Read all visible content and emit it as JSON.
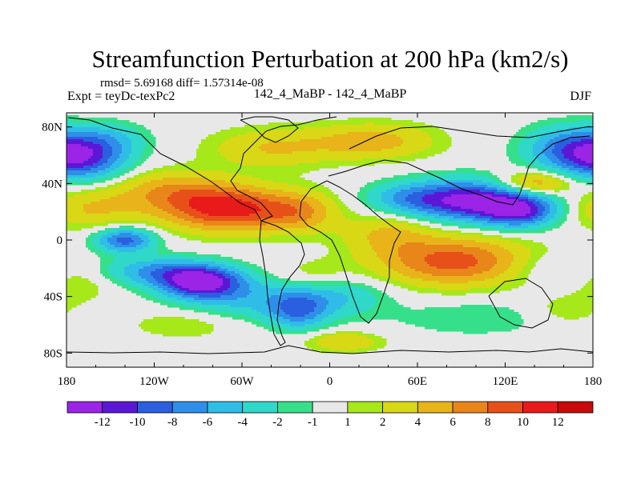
{
  "chart_data": {
    "type": "heatmap",
    "title": "Streamfunction Perturbation at 200 hPa (km2/s)",
    "stats_text": "rmsd= 5.69168 diff= 1.57314e-08",
    "left_label": "Expt = teyDc-texPc2",
    "center_label": "142_4_MaBP - 142_4_MaBP",
    "right_label": "DJF",
    "x_ticks": [
      {
        "value": -180,
        "label": "180"
      },
      {
        "value": -120,
        "label": "120W"
      },
      {
        "value": -60,
        "label": "60W"
      },
      {
        "value": 0,
        "label": "0"
      },
      {
        "value": 60,
        "label": "60E"
      },
      {
        "value": 120,
        "label": "120E"
      },
      {
        "value": 180,
        "label": "180"
      }
    ],
    "y_ticks": [
      {
        "value": 80,
        "label": "80N"
      },
      {
        "value": 40,
        "label": "40N"
      },
      {
        "value": 0,
        "label": "0"
      },
      {
        "value": -40,
        "label": "40S"
      },
      {
        "value": -80,
        "label": "80S"
      }
    ],
    "xlim": [
      -180,
      180
    ],
    "ylim": [
      -90,
      90
    ],
    "colorbar": {
      "labels": [
        "-12",
        "-10",
        "-8",
        "-6",
        "-4",
        "-2",
        "-1",
        "1",
        "2",
        "4",
        "6",
        "8",
        "10",
        "12"
      ],
      "colors": [
        "#9b24e6",
        "#5a18d6",
        "#2a5fe0",
        "#2f8fe8",
        "#2fbde8",
        "#2fd8c8",
        "#36e08a",
        "#e8e8e8",
        "#a6e81a",
        "#d8d816",
        "#e8b41a",
        "#e8861a",
        "#e8501a",
        "#e81a1a",
        "#c80a0a"
      ]
    },
    "blobs": [
      {
        "lon": -170,
        "lat": 58,
        "val": -10,
        "sx": 22,
        "sy": 11
      },
      {
        "lon": -140,
        "lat": 0,
        "val": -9,
        "sx": 14,
        "sy": 6
      },
      {
        "lon": -118,
        "lat": -22,
        "val": -6,
        "sx": 26,
        "sy": 7
      },
      {
        "lon": -88,
        "lat": -30,
        "val": -13,
        "sx": 20,
        "sy": 8
      },
      {
        "lon": -55,
        "lat": -42,
        "val": -4,
        "sx": 28,
        "sy": 10
      },
      {
        "lon": -22,
        "lat": -50,
        "val": -7,
        "sx": 14,
        "sy": 9
      },
      {
        "lon": 5,
        "lat": -40,
        "val": -4,
        "sx": 24,
        "sy": 10
      },
      {
        "lon": 50,
        "lat": 30,
        "val": -3,
        "sx": 18,
        "sy": 7
      },
      {
        "lon": 95,
        "lat": 28,
        "val": -13,
        "sx": 32,
        "sy": 10
      },
      {
        "lon": 130,
        "lat": 20,
        "val": -9,
        "sx": 18,
        "sy": 8
      },
      {
        "lon": 165,
        "lat": 65,
        "val": -7,
        "sx": 22,
        "sy": 11
      },
      {
        "lon": 150,
        "lat": -20,
        "val": -2,
        "sx": 22,
        "sy": 8
      },
      {
        "lon": 100,
        "lat": -55,
        "val": -2,
        "sx": 40,
        "sy": 9
      },
      {
        "lon": -40,
        "lat": 65,
        "val": 4,
        "sx": 30,
        "sy": 10
      },
      {
        "lon": 30,
        "lat": 70,
        "val": 5,
        "sx": 30,
        "sy": 9
      },
      {
        "lon": -150,
        "lat": 72,
        "val": -3,
        "sx": 18,
        "sy": 8
      },
      {
        "lon": -110,
        "lat": 35,
        "val": 5,
        "sx": 28,
        "sy": 10
      },
      {
        "lon": -70,
        "lat": 22,
        "val": 11,
        "sx": 30,
        "sy": 11
      },
      {
        "lon": -20,
        "lat": 20,
        "val": 5,
        "sx": 18,
        "sy": 10
      },
      {
        "lon": 40,
        "lat": 5,
        "val": 4,
        "sx": 22,
        "sy": 10
      },
      {
        "lon": 85,
        "lat": -15,
        "val": 9,
        "sx": 36,
        "sy": 12
      },
      {
        "lon": 140,
        "lat": 40,
        "val": 7,
        "sx": 18,
        "sy": 6
      },
      {
        "lon": -165,
        "lat": 22,
        "val": 4,
        "sx": 24,
        "sy": 10
      },
      {
        "lon": -170,
        "lat": -30,
        "val": 2,
        "sx": 16,
        "sy": 10
      },
      {
        "lon": -10,
        "lat": -25,
        "val": 2,
        "sx": 18,
        "sy": 8
      },
      {
        "lon": 10,
        "lat": -72,
        "val": 4,
        "sx": 18,
        "sy": 5
      },
      {
        "lon": -100,
        "lat": -60,
        "val": 2,
        "sx": 26,
        "sy": 7
      },
      {
        "lon": 160,
        "lat": -50,
        "val": 2,
        "sx": 18,
        "sy": 8
      }
    ]
  }
}
